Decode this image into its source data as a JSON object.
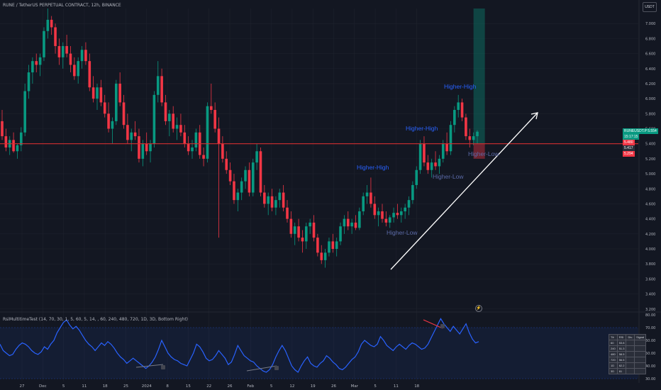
{
  "header": {
    "title": "RUNE / TetherUS PERPETUAL CONTRACT, 12h, BINANCE"
  },
  "currency_button": "USDT",
  "chart_data": {
    "type": "candlestick",
    "symbol": "RUNEUSDT.P",
    "timeframe": "12h",
    "ylim": [
      3.16,
      7.2
    ],
    "y_ticks": [
      "7.000",
      "6.800",
      "6.600",
      "6.400",
      "6.200",
      "6.000",
      "5.800",
      "5.600",
      "5.400",
      "5.200",
      "5.000",
      "4.800",
      "4.600",
      "4.400",
      "4.200",
      "4.000",
      "3.800",
      "3.600",
      "3.400",
      "3.200"
    ],
    "x_ticks": [
      "27",
      "Dec",
      "5",
      "11",
      "18",
      "25",
      "2024",
      "8",
      "15",
      "22",
      "26",
      "Feb",
      "5",
      "12",
      "19",
      "26",
      "Mar",
      "5",
      "11",
      "18"
    ],
    "ohlc": [
      [
        5.7,
        5.85,
        5.45,
        5.5
      ],
      [
        5.5,
        5.6,
        5.3,
        5.35
      ],
      [
        5.35,
        5.5,
        5.25,
        5.45
      ],
      [
        5.45,
        5.55,
        5.28,
        5.3
      ],
      [
        5.3,
        5.4,
        5.2,
        5.38
      ],
      [
        5.38,
        5.62,
        5.3,
        5.55
      ],
      [
        5.55,
        6.2,
        5.5,
        6.1
      ],
      [
        6.1,
        6.45,
        6.0,
        6.35
      ],
      [
        6.35,
        6.55,
        6.2,
        6.5
      ],
      [
        6.5,
        6.6,
        6.35,
        6.45
      ],
      [
        6.45,
        6.6,
        6.3,
        6.55
      ],
      [
        6.55,
        6.95,
        6.5,
        6.9
      ],
      [
        6.9,
        7.2,
        6.8,
        7.05
      ],
      [
        7.05,
        7.1,
        6.85,
        6.95
      ],
      [
        6.95,
        7.0,
        6.6,
        6.7
      ],
      [
        6.7,
        6.8,
        6.45,
        6.55
      ],
      [
        6.55,
        6.75,
        6.4,
        6.7
      ],
      [
        6.7,
        6.85,
        6.55,
        6.6
      ],
      [
        6.6,
        6.7,
        6.35,
        6.45
      ],
      [
        6.45,
        6.55,
        6.25,
        6.3
      ],
      [
        6.3,
        6.55,
        6.2,
        6.5
      ],
      [
        6.5,
        6.7,
        6.4,
        6.65
      ],
      [
        6.65,
        6.75,
        6.45,
        6.5
      ],
      [
        6.5,
        6.6,
        6.1,
        6.15
      ],
      [
        6.15,
        6.3,
        5.95,
        6.0
      ],
      [
        6.0,
        6.2,
        5.85,
        6.15
      ],
      [
        6.15,
        6.25,
        5.9,
        5.95
      ],
      [
        5.95,
        6.05,
        5.75,
        5.8
      ],
      [
        5.8,
        5.95,
        5.55,
        5.6
      ],
      [
        5.6,
        5.75,
        5.4,
        5.7
      ],
      [
        5.7,
        6.25,
        5.65,
        6.2
      ],
      [
        6.2,
        6.35,
        5.9,
        5.95
      ],
      [
        5.95,
        6.05,
        5.6,
        5.65
      ],
      [
        5.65,
        5.8,
        5.4,
        5.45
      ],
      [
        5.45,
        5.6,
        5.3,
        5.55
      ],
      [
        5.55,
        5.7,
        5.45,
        5.5
      ],
      [
        5.5,
        5.6,
        5.15,
        5.2
      ],
      [
        5.2,
        5.45,
        5.1,
        5.4
      ],
      [
        5.4,
        5.55,
        5.25,
        5.3
      ],
      [
        5.3,
        5.45,
        5.15,
        5.4
      ],
      [
        5.4,
        6.1,
        5.35,
        6.05
      ],
      [
        6.05,
        6.5,
        5.95,
        6.3
      ],
      [
        6.3,
        6.4,
        5.9,
        5.95
      ],
      [
        5.95,
        6.05,
        5.65,
        5.7
      ],
      [
        5.7,
        5.85,
        5.5,
        5.8
      ],
      [
        5.8,
        5.9,
        5.55,
        5.6
      ],
      [
        5.6,
        5.75,
        5.45,
        5.65
      ],
      [
        5.65,
        5.8,
        5.5,
        5.55
      ],
      [
        5.55,
        5.65,
        5.35,
        5.4
      ],
      [
        5.4,
        5.5,
        5.25,
        5.3
      ],
      [
        5.3,
        5.45,
        5.2,
        5.35
      ],
      [
        5.35,
        5.6,
        5.3,
        5.55
      ],
      [
        5.55,
        5.65,
        5.2,
        5.25
      ],
      [
        5.25,
        5.35,
        5.1,
        5.2
      ],
      [
        5.2,
        5.95,
        5.15,
        5.9
      ],
      [
        5.9,
        6.2,
        5.8,
        5.85
      ],
      [
        5.85,
        5.95,
        5.55,
        5.6
      ],
      [
        5.6,
        5.75,
        4.15,
        5.4
      ],
      [
        5.4,
        5.5,
        5.15,
        5.2
      ],
      [
        5.2,
        5.3,
        5.0,
        5.05
      ],
      [
        5.05,
        5.15,
        4.85,
        4.9
      ],
      [
        4.9,
        5.0,
        4.6,
        4.65
      ],
      [
        4.65,
        4.8,
        4.5,
        4.75
      ],
      [
        4.75,
        4.95,
        4.65,
        4.9
      ],
      [
        4.9,
        5.1,
        4.8,
        5.05
      ],
      [
        5.05,
        5.15,
        4.7,
        4.75
      ],
      [
        4.75,
        5.2,
        4.7,
        5.15
      ],
      [
        5.15,
        5.4,
        5.05,
        5.3
      ],
      [
        5.3,
        5.35,
        4.7,
        4.75
      ],
      [
        4.75,
        4.85,
        4.55,
        4.6
      ],
      [
        4.6,
        4.75,
        4.45,
        4.7
      ],
      [
        4.7,
        4.8,
        4.5,
        4.55
      ],
      [
        4.55,
        4.7,
        4.45,
        4.65
      ],
      [
        4.65,
        4.8,
        4.55,
        4.75
      ],
      [
        4.75,
        4.85,
        4.5,
        4.55
      ],
      [
        4.55,
        4.65,
        4.35,
        4.4
      ],
      [
        4.4,
        4.5,
        4.15,
        4.2
      ],
      [
        4.2,
        4.35,
        4.05,
        4.3
      ],
      [
        4.3,
        4.4,
        4.1,
        4.15
      ],
      [
        4.15,
        4.25,
        3.95,
        4.1
      ],
      [
        4.1,
        4.35,
        4.0,
        4.3
      ],
      [
        4.3,
        4.4,
        4.2,
        4.35
      ],
      [
        4.35,
        4.45,
        4.1,
        4.15
      ],
      [
        4.15,
        4.2,
        3.9,
        3.95
      ],
      [
        3.95,
        4.05,
        3.8,
        3.85
      ],
      [
        3.85,
        4.0,
        3.75,
        3.95
      ],
      [
        3.95,
        4.15,
        3.9,
        4.1
      ],
      [
        4.1,
        4.2,
        3.95,
        4.0
      ],
      [
        4.0,
        4.15,
        3.9,
        4.1
      ],
      [
        4.1,
        4.35,
        4.05,
        4.3
      ],
      [
        4.3,
        4.45,
        4.2,
        4.4
      ],
      [
        4.4,
        4.5,
        4.25,
        4.3
      ],
      [
        4.3,
        4.4,
        4.2,
        4.35
      ],
      [
        4.35,
        4.45,
        4.25,
        4.28
      ],
      [
        4.28,
        4.55,
        4.25,
        4.5
      ],
      [
        4.5,
        4.75,
        4.45,
        4.7
      ],
      [
        4.7,
        4.85,
        4.6,
        4.75
      ],
      [
        4.75,
        4.95,
        4.55,
        4.6
      ],
      [
        4.6,
        4.7,
        4.4,
        4.45
      ],
      [
        4.45,
        4.55,
        4.3,
        4.5
      ],
      [
        4.5,
        4.6,
        4.35,
        4.4
      ],
      [
        4.4,
        4.5,
        4.3,
        4.35
      ],
      [
        4.35,
        4.45,
        4.28,
        4.42
      ],
      [
        4.42,
        4.55,
        4.35,
        4.48
      ],
      [
        4.48,
        4.6,
        4.4,
        4.45
      ],
      [
        4.45,
        4.55,
        4.35,
        4.5
      ],
      [
        4.5,
        4.6,
        4.4,
        4.55
      ],
      [
        4.55,
        4.7,
        4.45,
        4.65
      ],
      [
        4.65,
        4.9,
        4.6,
        4.85
      ],
      [
        4.85,
        5.1,
        4.8,
        5.05
      ],
      [
        5.05,
        5.45,
        5.0,
        5.4
      ],
      [
        5.4,
        5.5,
        5.1,
        5.15
      ],
      [
        5.15,
        5.25,
        5.0,
        5.05
      ],
      [
        5.05,
        5.2,
        4.95,
        5.15
      ],
      [
        5.15,
        5.3,
        5.05,
        5.1
      ],
      [
        5.1,
        5.25,
        5.0,
        5.2
      ],
      [
        5.2,
        5.45,
        5.15,
        5.4
      ],
      [
        5.4,
        5.55,
        5.25,
        5.3
      ],
      [
        5.3,
        5.7,
        5.25,
        5.65
      ],
      [
        5.65,
        5.9,
        5.55,
        5.85
      ],
      [
        5.85,
        6.05,
        5.75,
        5.95
      ],
      [
        5.95,
        6.0,
        5.7,
        5.75
      ],
      [
        5.75,
        5.8,
        5.45,
        5.5
      ],
      [
        5.5,
        5.6,
        5.35,
        5.45
      ],
      [
        5.45,
        5.55,
        5.38,
        5.5
      ],
      [
        5.5,
        5.58,
        5.4,
        5.56
      ]
    ],
    "support_level": 5.4,
    "position_box": {
      "entry": 5.4,
      "target": 7.2,
      "stop": 5.2
    },
    "annotations": [
      {
        "text": "Higher-High",
        "kind": "high"
      },
      {
        "text": "Higher-High",
        "kind": "high"
      },
      {
        "text": "Higher-High",
        "kind": "high"
      },
      {
        "text": "Higher-Low",
        "kind": "low"
      },
      {
        "text": "Higher-Low",
        "kind": "low"
      },
      {
        "text": "Higher-Low",
        "kind": "low"
      }
    ],
    "price_tags": [
      {
        "label": "RUNEUSDT.P",
        "value": "5.554",
        "color": "#089981"
      },
      {
        "label": "",
        "value": "15:17:15",
        "color": "#089981"
      },
      {
        "label": "",
        "value": "5.480",
        "color": "#f23645"
      },
      {
        "label": "",
        "value": "5.417",
        "color": "#2a2e39"
      },
      {
        "label": "",
        "value": "5.294",
        "color": "#f23645"
      }
    ],
    "rsi": {
      "title": "RsiMultitimeTest (14, 70, 30, 1, 5, 60, 5, 14, , 60, 240, 480, 720, 1D, 3D, Bottom Right)",
      "ylim": [
        30,
        80
      ],
      "y_ticks": [
        "80.00",
        "70.00",
        "60.00",
        "50.00",
        "40.00",
        "30.00"
      ],
      "values": [
        57,
        52,
        50,
        48,
        49,
        53,
        56,
        58,
        57,
        55,
        52,
        50,
        49,
        51,
        55,
        53,
        57,
        60,
        66,
        70,
        74,
        76,
        72,
        69,
        71,
        68,
        64,
        60,
        57,
        55,
        52,
        55,
        58,
        56,
        59,
        57,
        54,
        50,
        47,
        45,
        42,
        44,
        46,
        44,
        42,
        40,
        38,
        40,
        43,
        47,
        53,
        60,
        55,
        50,
        47,
        45,
        44,
        42,
        41,
        40,
        45,
        50,
        57,
        55,
        51,
        46,
        44,
        45,
        48,
        52,
        49,
        46,
        41,
        43,
        49,
        56,
        52,
        48,
        46,
        44,
        43,
        40,
        38,
        36,
        35,
        37,
        41,
        47,
        52,
        56,
        52,
        46,
        40,
        37,
        35,
        40,
        44,
        47,
        42,
        40,
        39,
        42,
        44,
        48,
        46,
        43,
        41,
        38,
        37,
        39,
        42,
        45,
        47,
        51,
        57,
        60,
        58,
        56,
        55,
        57,
        63,
        60,
        56,
        54,
        52,
        55,
        57,
        55,
        53,
        56,
        58,
        57,
        55,
        53,
        54,
        57,
        62,
        67,
        72,
        77,
        73,
        70,
        67,
        71,
        68,
        65,
        69,
        73,
        66,
        61,
        58,
        59
      ],
      "table": {
        "headers": [
          "Tfr",
          "RSI",
          "Div.",
          "Signal"
        ],
        "rows": [
          [
            "60",
            "53.8",
            "",
            ""
          ],
          [
            "240",
            "51.3",
            "",
            ""
          ],
          [
            "480",
            "58.5",
            "",
            ""
          ],
          [
            "720",
            "56.5",
            "",
            ""
          ],
          [
            "1D",
            "62.2",
            "",
            ""
          ],
          [
            "3D",
            "61",
            "",
            ""
          ]
        ]
      }
    }
  }
}
